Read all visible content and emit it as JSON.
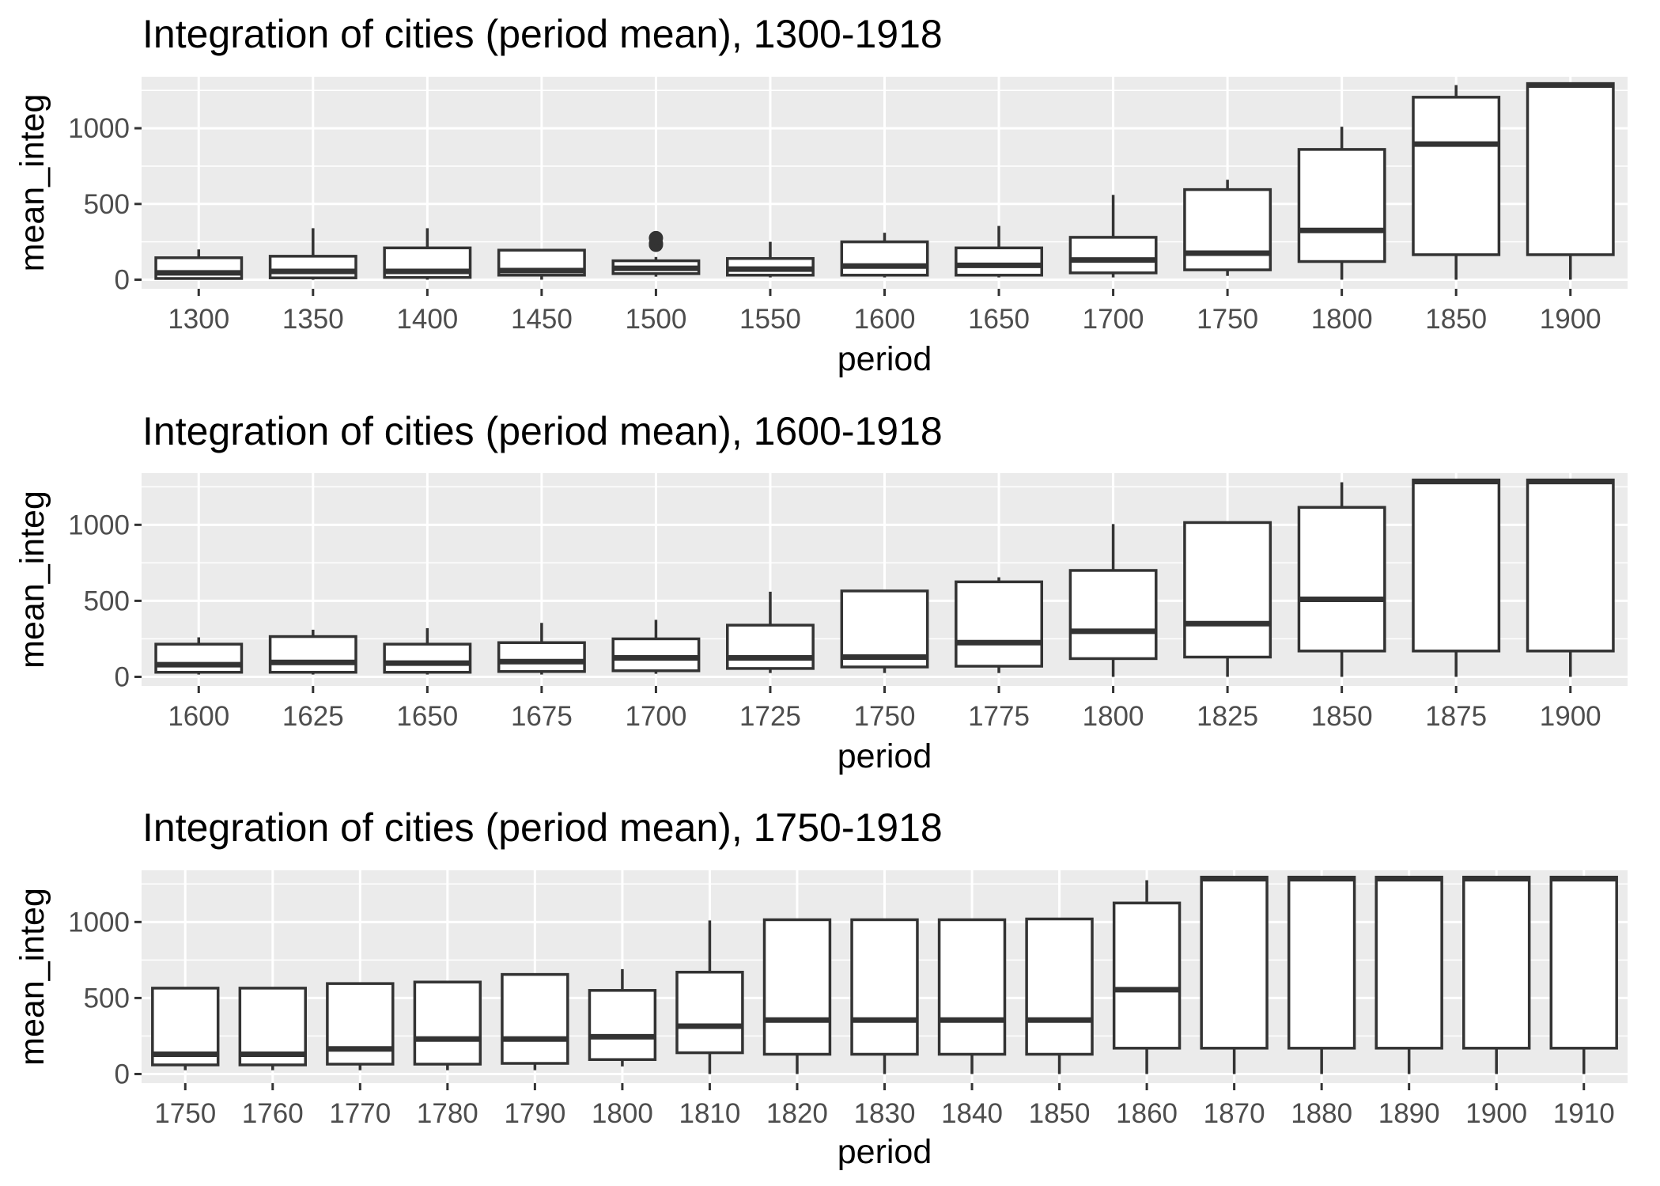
{
  "chart_data": [
    {
      "type": "box",
      "title": "Integration of cities (period mean), 1300-1918",
      "xlabel": "period",
      "ylabel": "mean_integ",
      "ylim": [
        -60,
        1340
      ],
      "yticks": [
        0,
        500,
        1000
      ],
      "grid": true,
      "categories": [
        "1300",
        "1350",
        "1400",
        "1450",
        "1500",
        "1550",
        "1600",
        "1650",
        "1700",
        "1750",
        "1800",
        "1850",
        "1900"
      ],
      "boxes": [
        {
          "min": 0,
          "q1": 8,
          "median": 45,
          "q3": 145,
          "max": 200
        },
        {
          "min": 0,
          "q1": 12,
          "median": 55,
          "q3": 155,
          "max": 340
        },
        {
          "min": 0,
          "q1": 15,
          "median": 55,
          "q3": 210,
          "max": 340
        },
        {
          "min": 0,
          "q1": 30,
          "median": 60,
          "q3": 195,
          "max": 200
        },
        {
          "min": 20,
          "q1": 40,
          "median": 75,
          "q3": 125,
          "max": 150,
          "outliers": [
            230,
            240,
            275
          ]
        },
        {
          "min": 15,
          "q1": 30,
          "median": 70,
          "q3": 140,
          "max": 250
        },
        {
          "min": 15,
          "q1": 30,
          "median": 90,
          "q3": 250,
          "max": 310
        },
        {
          "min": 15,
          "q1": 30,
          "median": 95,
          "q3": 210,
          "max": 355
        },
        {
          "min": 15,
          "q1": 45,
          "median": 130,
          "q3": 280,
          "max": 560
        },
        {
          "min": 25,
          "q1": 65,
          "median": 175,
          "q3": 595,
          "max": 660
        },
        {
          "min": 0,
          "q1": 120,
          "median": 325,
          "q3": 860,
          "max": 1010
        },
        {
          "min": 0,
          "q1": 165,
          "median": 895,
          "q3": 1205,
          "max": 1285
        },
        {
          "min": 0,
          "q1": 165,
          "median": 1285,
          "q3": 1295,
          "max": 1295
        }
      ]
    },
    {
      "type": "box",
      "title": "Integration of cities (period mean), 1600-1918",
      "xlabel": "period",
      "ylabel": "mean_integ",
      "ylim": [
        -60,
        1340
      ],
      "yticks": [
        0,
        500,
        1000
      ],
      "grid": true,
      "categories": [
        "1600",
        "1625",
        "1650",
        "1675",
        "1700",
        "1725",
        "1750",
        "1775",
        "1800",
        "1825",
        "1850",
        "1875",
        "1900"
      ],
      "boxes": [
        {
          "min": 15,
          "q1": 30,
          "median": 80,
          "q3": 215,
          "max": 260
        },
        {
          "min": 15,
          "q1": 30,
          "median": 95,
          "q3": 265,
          "max": 310
        },
        {
          "min": 15,
          "q1": 30,
          "median": 90,
          "q3": 215,
          "max": 320
        },
        {
          "min": 15,
          "q1": 35,
          "median": 100,
          "q3": 225,
          "max": 355
        },
        {
          "min": 20,
          "q1": 40,
          "median": 125,
          "q3": 250,
          "max": 375
        },
        {
          "min": 25,
          "q1": 55,
          "median": 125,
          "q3": 340,
          "max": 560
        },
        {
          "min": 25,
          "q1": 65,
          "median": 130,
          "q3": 565,
          "max": 570
        },
        {
          "min": 25,
          "q1": 70,
          "median": 225,
          "q3": 625,
          "max": 655
        },
        {
          "min": 0,
          "q1": 120,
          "median": 300,
          "q3": 700,
          "max": 1005
        },
        {
          "min": 0,
          "q1": 130,
          "median": 350,
          "q3": 1015,
          "max": 1015
        },
        {
          "min": 0,
          "q1": 170,
          "median": 510,
          "q3": 1115,
          "max": 1280
        },
        {
          "min": 0,
          "q1": 170,
          "median": 1285,
          "q3": 1295,
          "max": 1295
        },
        {
          "min": 0,
          "q1": 170,
          "median": 1285,
          "q3": 1295,
          "max": 1295
        }
      ]
    },
    {
      "type": "box",
      "title": "Integration of cities (period mean), 1750-1918",
      "xlabel": "period",
      "ylabel": "mean_integ",
      "ylim": [
        -60,
        1340
      ],
      "yticks": [
        0,
        500,
        1000
      ],
      "grid": true,
      "categories": [
        "1750",
        "1760",
        "1770",
        "1780",
        "1790",
        "1800",
        "1810",
        "1820",
        "1830",
        "1840",
        "1850",
        "1860",
        "1870",
        "1880",
        "1890",
        "1900",
        "1910"
      ],
      "boxes": [
        {
          "min": 25,
          "q1": 60,
          "median": 130,
          "q3": 565,
          "max": 565
        },
        {
          "min": 25,
          "q1": 60,
          "median": 130,
          "q3": 565,
          "max": 565
        },
        {
          "min": 25,
          "q1": 65,
          "median": 165,
          "q3": 595,
          "max": 595
        },
        {
          "min": 25,
          "q1": 65,
          "median": 230,
          "q3": 605,
          "max": 605
        },
        {
          "min": 25,
          "q1": 70,
          "median": 230,
          "q3": 655,
          "max": 655
        },
        {
          "min": 50,
          "q1": 95,
          "median": 245,
          "q3": 550,
          "max": 690
        },
        {
          "min": 0,
          "q1": 140,
          "median": 315,
          "q3": 670,
          "max": 1010
        },
        {
          "min": 0,
          "q1": 130,
          "median": 355,
          "q3": 1015,
          "max": 1015
        },
        {
          "min": 0,
          "q1": 130,
          "median": 355,
          "q3": 1015,
          "max": 1015
        },
        {
          "min": 0,
          "q1": 130,
          "median": 355,
          "q3": 1015,
          "max": 1015
        },
        {
          "min": 0,
          "q1": 130,
          "median": 355,
          "q3": 1020,
          "max": 1020
        },
        {
          "min": 0,
          "q1": 170,
          "median": 555,
          "q3": 1125,
          "max": 1275
        },
        {
          "min": 0,
          "q1": 170,
          "median": 1285,
          "q3": 1295,
          "max": 1295
        },
        {
          "min": 0,
          "q1": 170,
          "median": 1285,
          "q3": 1295,
          "max": 1295
        },
        {
          "min": 0,
          "q1": 170,
          "median": 1285,
          "q3": 1295,
          "max": 1295
        },
        {
          "min": 0,
          "q1": 170,
          "median": 1285,
          "q3": 1295,
          "max": 1295
        },
        {
          "min": 0,
          "q1": 170,
          "median": 1285,
          "q3": 1295,
          "max": 1295
        }
      ]
    }
  ]
}
